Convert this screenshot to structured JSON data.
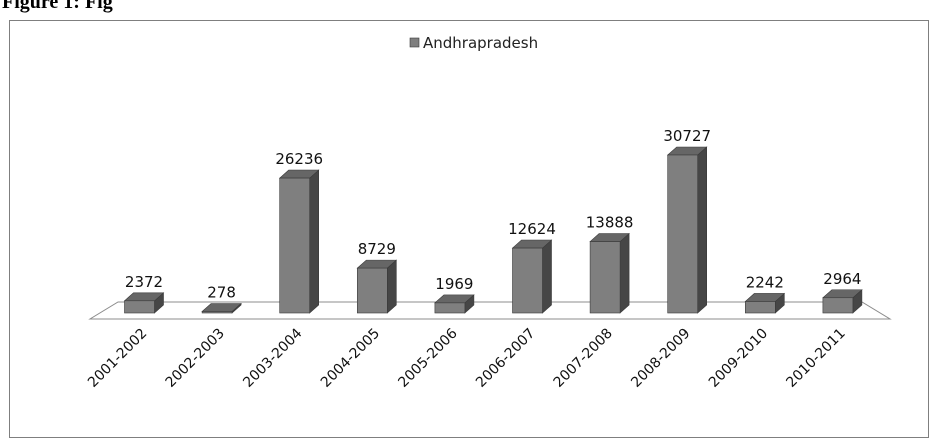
{
  "page": {
    "header_fragment": "Figure 1:      Fig"
  },
  "chart_data": {
    "type": "bar",
    "style": "3d-column",
    "title": "",
    "xlabel": "",
    "ylabel": "",
    "legend": {
      "position": "top",
      "entries": [
        "Andhrapradesh"
      ]
    },
    "grid": false,
    "categories": [
      "2001-2002",
      "2002-2003",
      "2003-2004",
      "2004-2005",
      "2005-2006",
      "2006-2007",
      "2007-2008",
      "2008-2009",
      "2009-2010",
      "2010-2011"
    ],
    "series": [
      {
        "name": "Andhrapradesh",
        "color": "#7f7f7f",
        "values": [
          2372,
          278,
          26236,
          8729,
          1969,
          12624,
          13888,
          30727,
          2242,
          2964
        ]
      }
    ],
    "ylim": [
      0,
      31000
    ]
  }
}
